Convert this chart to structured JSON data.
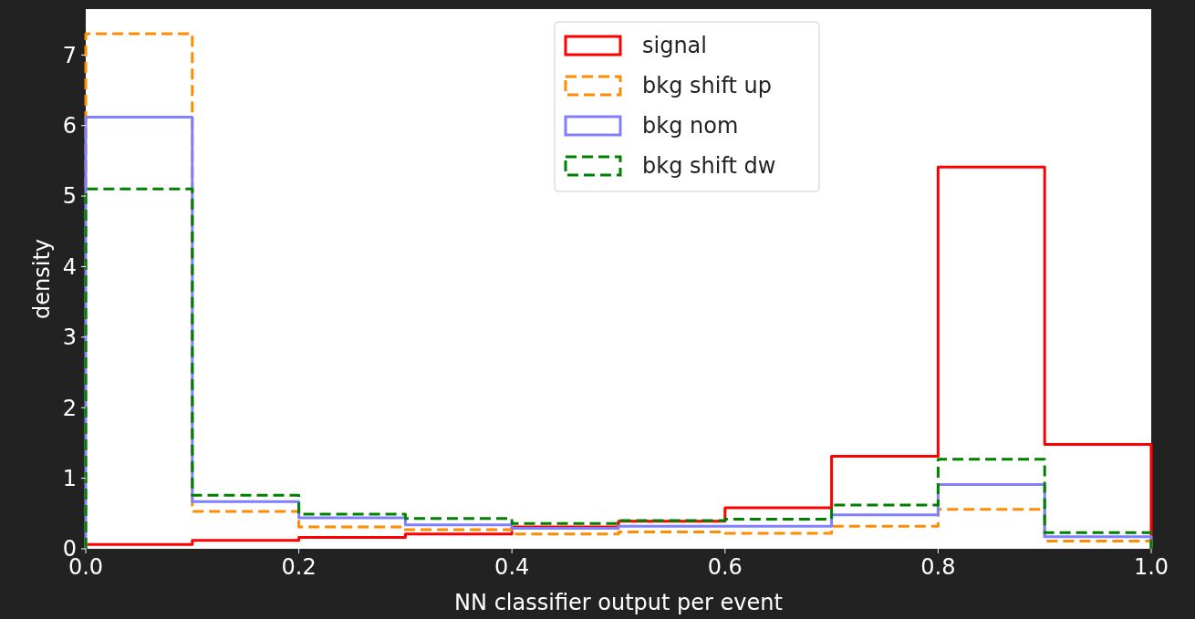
{
  "chart_data": {
    "type": "histogram",
    "xlabel": "NN classifier output per event",
    "ylabel": "density",
    "bins": [
      0,
      0.1,
      0.2,
      0.3,
      0.4,
      0.5,
      0.6,
      0.7,
      0.8,
      0.9,
      1.0
    ],
    "series": [
      {
        "name": "signal",
        "color": "#ff0000",
        "line_style": "solid",
        "values": [
          0.06,
          0.12,
          0.16,
          0.21,
          0.31,
          0.39,
          0.58,
          1.31,
          5.41,
          1.48
        ]
      },
      {
        "name": "bkg shift up",
        "color": "#ff8c00",
        "line_style": "dashed",
        "values": [
          7.3,
          0.53,
          0.31,
          0.27,
          0.21,
          0.24,
          0.22,
          0.32,
          0.56,
          0.11
        ]
      },
      {
        "name": "bkg nom",
        "color": "#8080ff",
        "line_style": "solid",
        "values": [
          6.12,
          0.67,
          0.44,
          0.34,
          0.29,
          0.32,
          0.32,
          0.48,
          0.91,
          0.17
        ]
      },
      {
        "name": "bkg shift dw",
        "color": "#008000",
        "line_style": "dashed",
        "values": [
          5.1,
          0.76,
          0.49,
          0.43,
          0.36,
          0.4,
          0.42,
          0.62,
          1.27,
          0.23
        ]
      }
    ],
    "xlim": [
      0,
      1
    ],
    "xticks": [
      {
        "value": 0,
        "label": "0.0"
      },
      0.2,
      0.4,
      0.6,
      0.8,
      {
        "value": 1,
        "label": "1.0"
      }
    ],
    "ylim": [
      0,
      7.65
    ],
    "yticks": [
      0,
      1,
      2,
      3,
      4,
      5,
      6,
      7
    ],
    "legend": "top",
    "grid": false
  }
}
